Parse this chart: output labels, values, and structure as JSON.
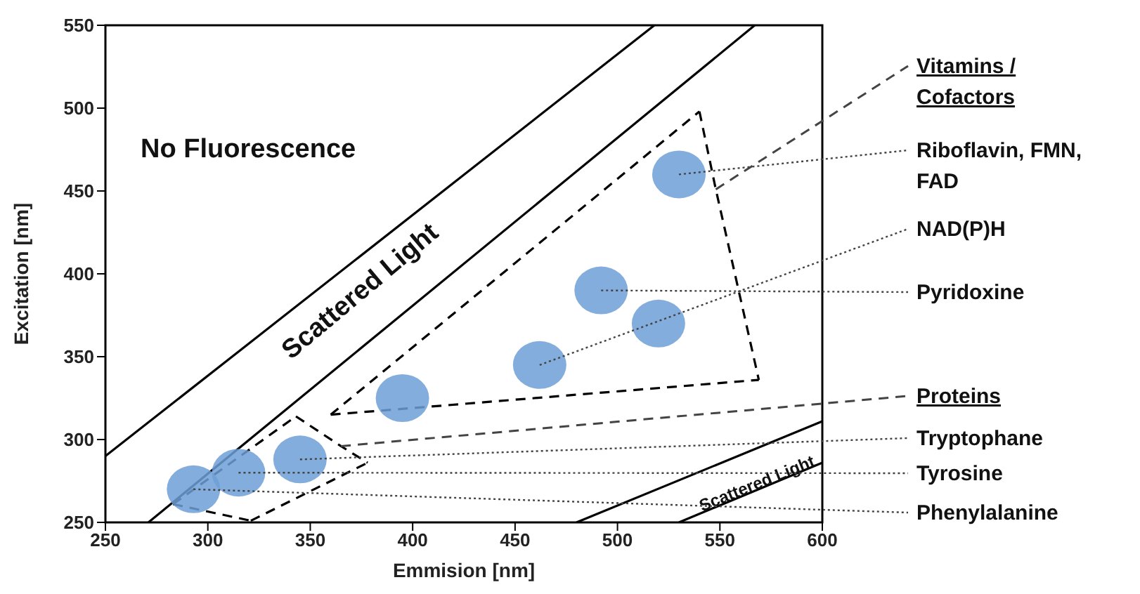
{
  "chart_data": {
    "type": "scatter",
    "xlabel": "Emmision [nm]",
    "ylabel": "Excitation [nm]",
    "xlim": [
      250,
      600
    ],
    "ylim": [
      250,
      550
    ],
    "xticks": [
      250,
      300,
      350,
      400,
      450,
      500,
      550,
      600
    ],
    "yticks": [
      250,
      300,
      350,
      400,
      450,
      500,
      550
    ],
    "series": [
      {
        "color": "#6d9fd6",
        "marker": "circle",
        "x": [
          293,
          315,
          345,
          395,
          462,
          492,
          520,
          530
        ],
        "values": [
          270,
          280,
          288,
          325,
          345,
          390,
          370,
          460
        ]
      },
      {
        "type": "line",
        "color": "#000000",
        "line_style": "solid",
        "x": [
          250,
          518
        ],
        "values": [
          290,
          550
        ]
      },
      {
        "type": "line",
        "color": "#000000",
        "line_style": "solid",
        "x": [
          271,
          567
        ],
        "values": [
          250,
          550
        ]
      },
      {
        "type": "line",
        "color": "#000000",
        "line_style": "solid",
        "x": [
          480,
          600
        ],
        "values": [
          250,
          311
        ]
      },
      {
        "type": "line",
        "color": "#000000",
        "line_style": "solid",
        "x": [
          530,
          600
        ],
        "values": [
          250,
          286
        ]
      },
      {
        "type": "line",
        "color": "#000000",
        "line_style": "dashed",
        "x": [
          360,
          540
        ],
        "values": [
          315,
          498
        ]
      },
      {
        "type": "line",
        "color": "#000000",
        "line_style": "dashed",
        "x": [
          540,
          548,
          569
        ],
        "values": [
          498,
          451,
          336
        ]
      },
      {
        "type": "line",
        "color": "#000000",
        "line_style": "dashed",
        "x": [
          360,
          569
        ],
        "values": [
          315,
          336
        ]
      },
      {
        "type": "line",
        "color": "#000000",
        "line_style": "dashed",
        "x": [
          283,
          343
        ],
        "values": [
          261,
          314
        ]
      },
      {
        "type": "line",
        "color": "#000000",
        "line_style": "dashed",
        "x": [
          343,
          365,
          378
        ],
        "values": [
          314,
          296,
          286
        ]
      },
      {
        "type": "line",
        "color": "#000000",
        "line_style": "dashed",
        "x": [
          321,
          378
        ],
        "values": [
          251,
          286
        ]
      },
      {
        "type": "line",
        "color": "#000000",
        "line_style": "dashed",
        "x": [
          283,
          321
        ],
        "values": [
          261,
          251
        ]
      }
    ],
    "annotations": [
      "No Fluorescence",
      "Scattered Light",
      "Scattered Light",
      {
        "text": "Vitamins / Cofactors",
        "x": 548,
        "y": 451
      },
      {
        "text": "Riboflavin, FMN, FAD",
        "x": 530,
        "y": 460
      },
      {
        "text": "NAD(P)H",
        "x": 462,
        "y": 345
      },
      {
        "text": "Pyridoxine",
        "x": 492,
        "y": 390
      },
      {
        "text": "Proteins",
        "x": 365,
        "y": 296
      },
      {
        "text": "Tryptophane",
        "x": 345,
        "y": 288
      },
      {
        "text": "Tyrosine",
        "x": 315,
        "y": 280
      },
      {
        "text": "Phenylalanine",
        "x": 293,
        "y": 270
      }
    ]
  }
}
